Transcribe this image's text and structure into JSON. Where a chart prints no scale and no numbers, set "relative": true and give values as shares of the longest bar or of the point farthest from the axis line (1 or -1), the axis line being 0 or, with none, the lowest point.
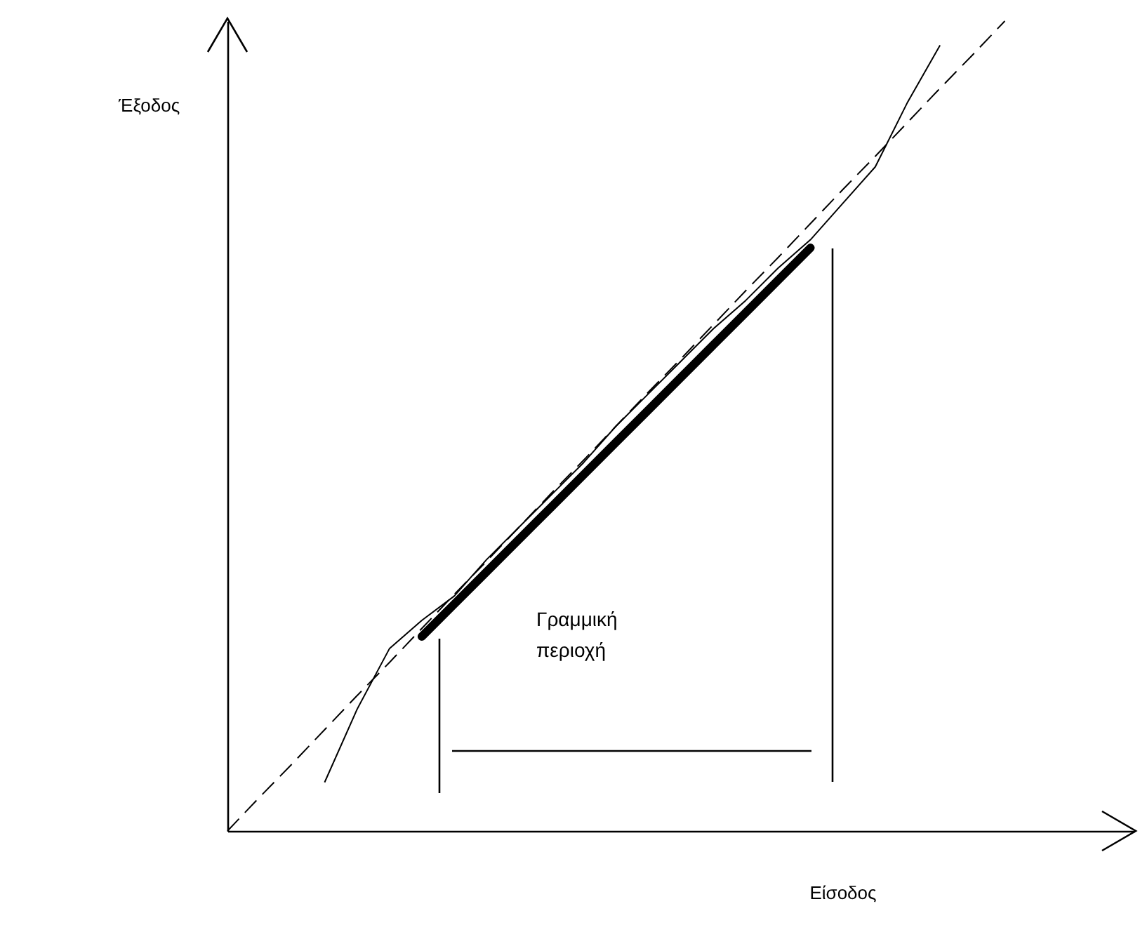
{
  "chart_data": {
    "type": "line",
    "relative": true,
    "xlabel": "Είσοδος",
    "ylabel": "Έξοδος",
    "categories": [
      null,
      null,
      null,
      null,
      null,
      null,
      null,
      null,
      null,
      null,
      null,
      null,
      null,
      null,
      null,
      null,
      null,
      null,
      null,
      null,
      null,
      null,
      null,
      null,
      null,
      null,
      null,
      null,
      null
    ],
    "series": [
      {
        "color": "#000000",
        "line_style": "dashed",
        "values": [
          0,
          0.042,
          0.083,
          0.125,
          0.167,
          0.208,
          0.25,
          0.292,
          0.333,
          0.375,
          0.417,
          0.458,
          0.5,
          0.542,
          0.583,
          0.625,
          0.667,
          0.708,
          0.75,
          0.792,
          0.833,
          0.875,
          0.917,
          0.958,
          1,
          null,
          null,
          null,
          null
        ]
      },
      {
        "color": "#000000",
        "values": [
          null,
          null,
          null,
          0.06,
          0.15,
          0.225,
          0.26,
          0.29,
          0.335,
          0.375,
          0.415,
          0.455,
          0.5,
          0.54,
          0.58,
          0.62,
          0.655,
          0.695,
          0.73,
          0.775,
          0.82,
          0.9,
          0.97,
          null,
          null,
          null,
          null,
          null,
          null
        ]
      },
      {
        "color": "#000000",
        "values": [
          null,
          null,
          null,
          null,
          null,
          null,
          0.24,
          0.28,
          0.32,
          0.36,
          0.4,
          0.44,
          0.48,
          0.52,
          0.56,
          0.6,
          0.64,
          0.68,
          0.72,
          null,
          null,
          null,
          null,
          null,
          null,
          null,
          null,
          null,
          null
        ]
      }
    ],
    "annotations": [
      "Γραμμική περιοχή"
    ]
  }
}
